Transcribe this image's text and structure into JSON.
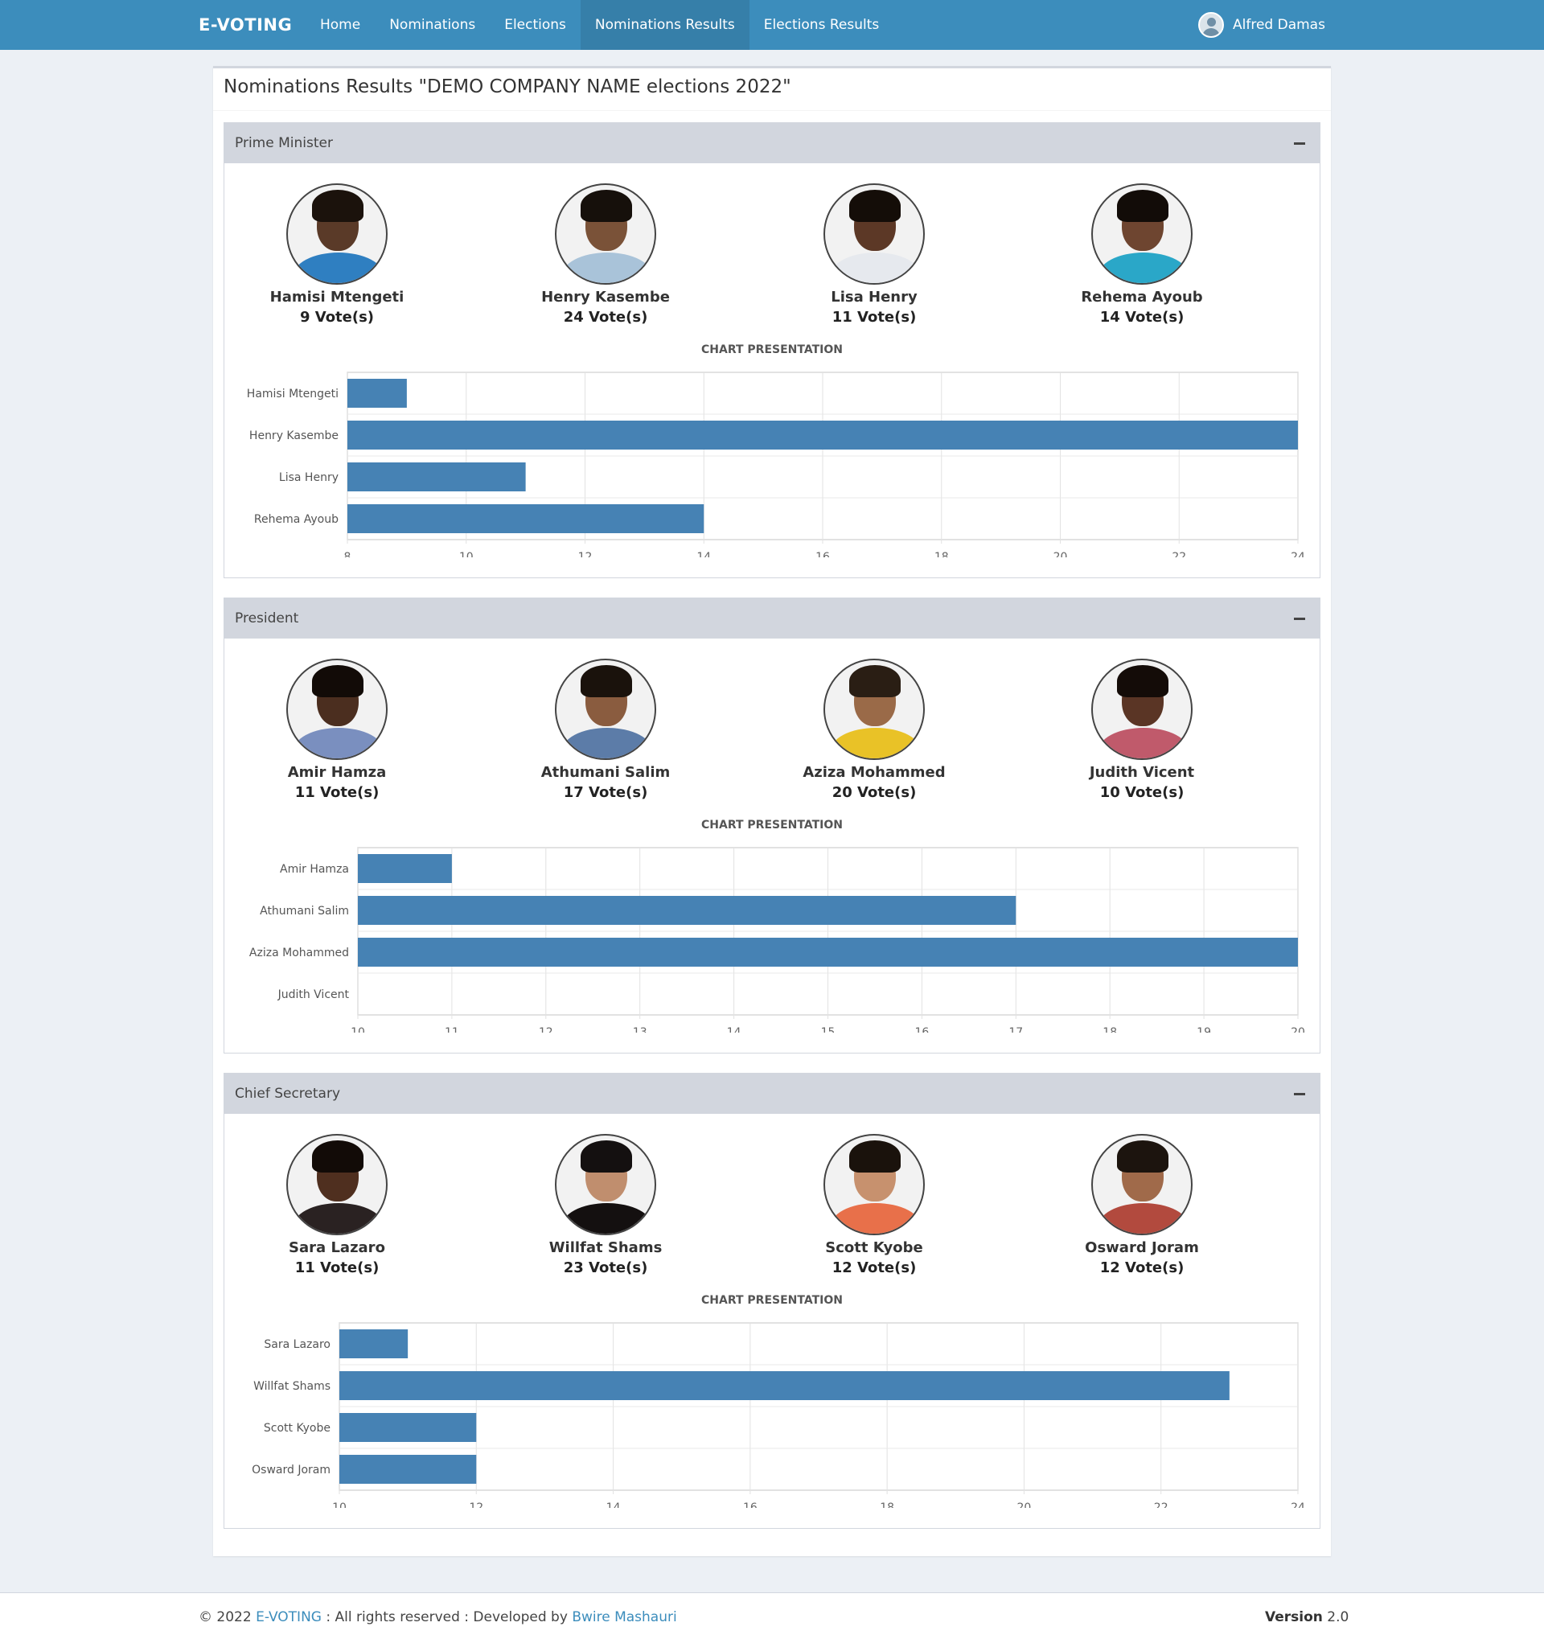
{
  "navbar": {
    "brand": "E-VOTING",
    "items": [
      {
        "label": "Home",
        "active": false
      },
      {
        "label": "Nominations",
        "active": false
      },
      {
        "label": "Elections",
        "active": false
      },
      {
        "label": "Nominations Results",
        "active": true
      },
      {
        "label": "Elections Results",
        "active": false
      }
    ],
    "user_name": "Alfred Damas"
  },
  "page": {
    "title": "Nominations Results \"DEMO COMPANY NAME elections 2022\""
  },
  "sections": [
    {
      "title": "Prime Minister",
      "candidates": [
        {
          "name": "Hamisi Mtengeti",
          "votes": "9 Vote(s)",
          "skin": "#5a3a28",
          "hair": "#1b120c",
          "shirt": "#2f7fc1"
        },
        {
          "name": "Henry Kasembe",
          "votes": "24 Vote(s)",
          "skin": "#7a5238",
          "hair": "#16100b",
          "shirt": "#a9c3d9"
        },
        {
          "name": "Lisa Henry",
          "votes": "11 Vote(s)",
          "skin": "#5c3826",
          "hair": "#140d08",
          "shirt": "#e6e9ee"
        },
        {
          "name": "Rehema Ayoub",
          "votes": "14 Vote(s)",
          "skin": "#6e4530",
          "hair": "#120c08",
          "shirt": "#2aa7c8"
        }
      ],
      "chart_label": "CHART PRESENTATION"
    },
    {
      "title": "President",
      "candidates": [
        {
          "name": "Amir Hamza",
          "votes": "11 Vote(s)",
          "skin": "#4b2e1f",
          "hair": "#120b07",
          "shirt": "#7a8fbf"
        },
        {
          "name": "Athumani Salim",
          "votes": "17 Vote(s)",
          "skin": "#8a5c3f",
          "hair": "#1a120c",
          "shirt": "#5c7ca8"
        },
        {
          "name": "Aziza Mohammed",
          "votes": "20 Vote(s)",
          "skin": "#9a6a48",
          "hair": "#2a1e14",
          "shirt": "#e9c227"
        },
        {
          "name": "Judith Vicent",
          "votes": "10 Vote(s)",
          "skin": "#5a3525",
          "hair": "#140c08",
          "shirt": "#c05a6b"
        }
      ],
      "chart_label": "CHART PRESENTATION"
    },
    {
      "title": "Chief Secretary",
      "candidates": [
        {
          "name": "Sara Lazaro",
          "votes": "11 Vote(s)",
          "skin": "#4f2f1f",
          "hair": "#120b07",
          "shirt": "#2a2222"
        },
        {
          "name": "Willfat Shams",
          "votes": "23 Vote(s)",
          "skin": "#c08e6e",
          "hair": "#141010",
          "shirt": "#141010"
        },
        {
          "name": "Scott Kyobe",
          "votes": "12 Vote(s)",
          "skin": "#c7916e",
          "hair": "#1a120c",
          "shirt": "#e8704a"
        },
        {
          "name": "Osward Joram",
          "votes": "12 Vote(s)",
          "skin": "#a06a4a",
          "hair": "#1c140e",
          "shirt": "#b24a3e"
        }
      ],
      "chart_label": "CHART PRESENTATION"
    }
  ],
  "chart_data": [
    {
      "type": "bar",
      "orientation": "horizontal",
      "categories": [
        "Hamisi Mtengeti",
        "Henry Kasembe",
        "Lisa Henry",
        "Rehema Ayoub"
      ],
      "values": [
        9,
        24,
        11,
        14
      ],
      "xlim": [
        8,
        24
      ],
      "xticks": [
        8,
        10,
        12,
        14,
        16,
        18,
        20,
        22,
        24
      ],
      "grid": true,
      "bar_color": "#4682b4"
    },
    {
      "type": "bar",
      "orientation": "horizontal",
      "categories": [
        "Amir Hamza",
        "Athumani Salim",
        "Aziza Mohammed",
        "Judith Vicent"
      ],
      "values": [
        11,
        17,
        20,
        10
      ],
      "xlim": [
        10,
        20
      ],
      "xticks": [
        10,
        11,
        12,
        13,
        14,
        15,
        16,
        17,
        18,
        19,
        20
      ],
      "grid": true,
      "bar_color": "#4682b4"
    },
    {
      "type": "bar",
      "orientation": "horizontal",
      "categories": [
        "Sara Lazaro",
        "Willfat Shams",
        "Scott Kyobe",
        "Osward Joram"
      ],
      "values": [
        11,
        23,
        12,
        12
      ],
      "xlim": [
        10,
        24
      ],
      "xticks": [
        10,
        12,
        14,
        16,
        18,
        20,
        22,
        24
      ],
      "grid": true,
      "bar_color": "#4682b4"
    }
  ],
  "footer": {
    "copyright": "© 2022",
    "brand_link": "E-VOTING",
    "rights": ": All rights reserved : Developed by",
    "developer_link": "Bwire Mashauri",
    "version_label": "Version",
    "version_value": "2.0"
  }
}
